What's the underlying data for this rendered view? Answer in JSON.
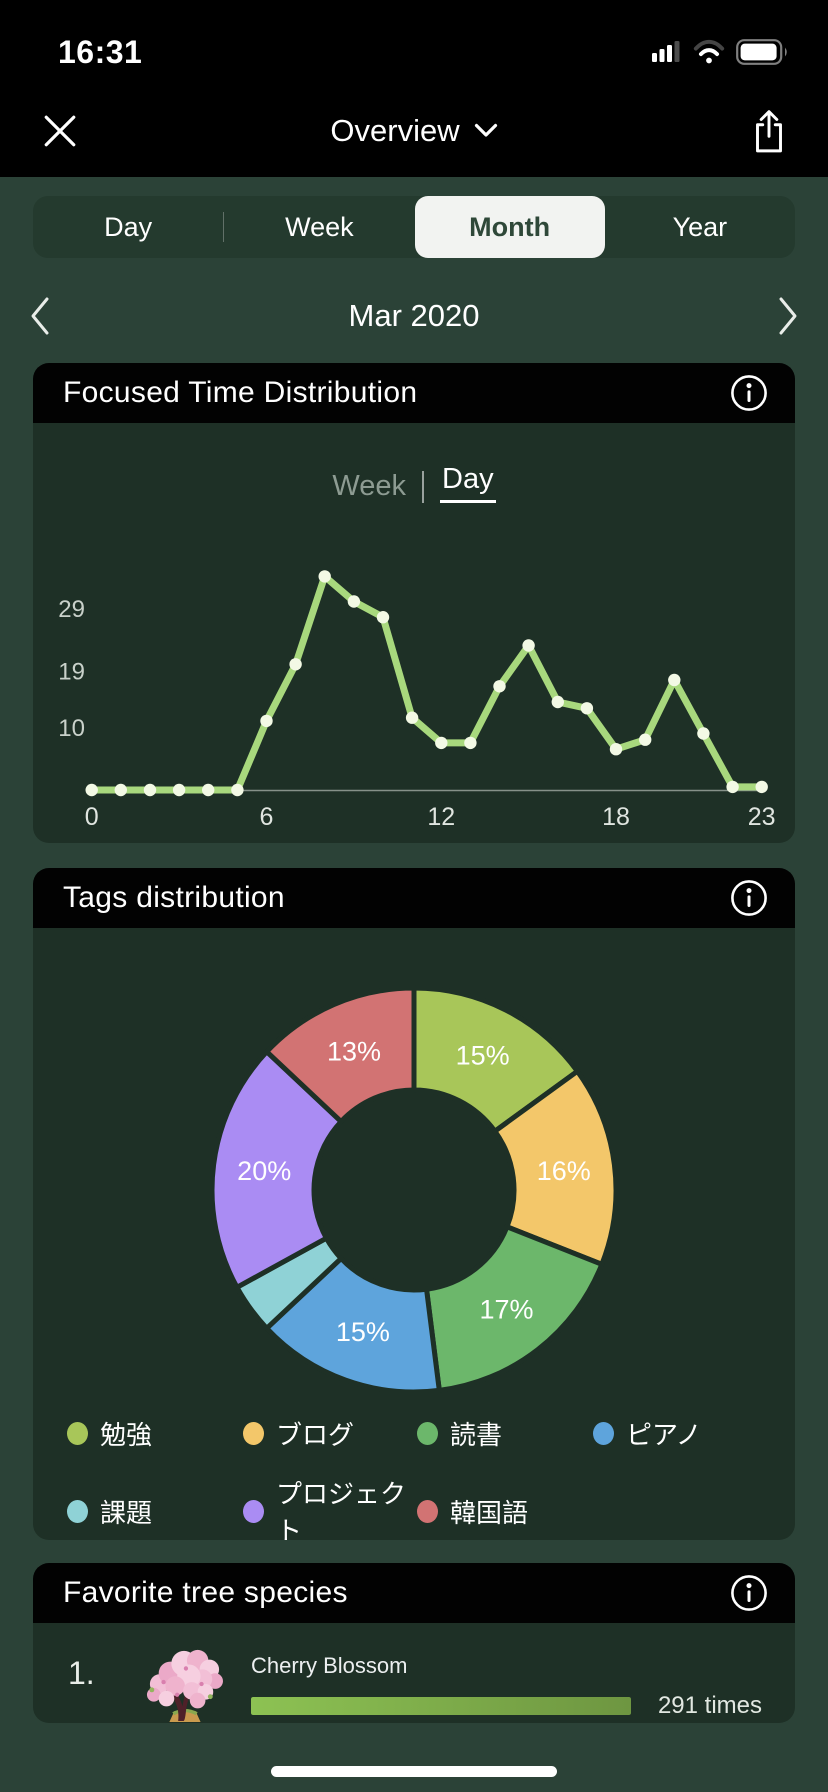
{
  "status_bar": {
    "time": "16:31",
    "icons": [
      "cellular-signal",
      "wifi",
      "battery"
    ]
  },
  "nav": {
    "title": "Overview"
  },
  "tabs": {
    "items": [
      "Day",
      "Week",
      "Month",
      "Year"
    ],
    "selected": "Month"
  },
  "period": {
    "label": "Mar 2020"
  },
  "cards": {
    "focused_time": {
      "title": "Focused Time Distribution",
      "toggle": {
        "options": [
          "Week",
          "Day"
        ],
        "selected": "Day"
      }
    },
    "tags": {
      "title": "Tags distribution"
    },
    "favorite_trees": {
      "title": "Favorite tree species",
      "rows": [
        {
          "rank": "1.",
          "name": "Cherry Blossom",
          "count_label": "291 times",
          "progress_pct": 100
        }
      ]
    }
  },
  "chart_data": [
    {
      "type": "line",
      "title": "Focused Time Distribution",
      "mode_selected": "Day",
      "x": [
        0,
        1,
        2,
        3,
        4,
        5,
        6,
        7,
        8,
        9,
        10,
        11,
        12,
        13,
        14,
        15,
        16,
        17,
        18,
        19,
        20,
        21,
        22,
        23
      ],
      "values": [
        0,
        0,
        0,
        0,
        0,
        0,
        11,
        20,
        34,
        30,
        27.5,
        11.5,
        7.5,
        7.5,
        16.5,
        23,
        14,
        13,
        6.5,
        8,
        17.5,
        9,
        0.5,
        0.5
      ],
      "yticks": [
        10,
        19,
        29
      ],
      "xticks": [
        0,
        6,
        12,
        18,
        23
      ],
      "ylim": [
        0,
        36
      ],
      "line_color": "#a8d87d",
      "dot_color": "#f3f9e5",
      "axis_line_color": "#99a29b",
      "tick_color": "#c9d1ca"
    },
    {
      "type": "donut",
      "title": "Tags distribution",
      "labels": [
        "勉強",
        "ブログ",
        "読書",
        "ピアノ",
        "課題",
        "プロジェクト",
        "韓国語"
      ],
      "values": [
        15,
        16,
        17,
        15,
        4,
        20,
        13
      ],
      "slice_labels": [
        "15%",
        "16%",
        "17%",
        "15%",
        "",
        "20%",
        "13%"
      ],
      "colors": [
        "#a8c659",
        "#f3c76a",
        "#6cb76b",
        "#5ea4dc",
        "#8fd2d6",
        "#aa8cf3",
        "#d27373"
      ],
      "start": "top",
      "direction": "clockwise",
      "label_color": "#ffffff"
    }
  ],
  "colors": {
    "page_bg": "#2b4237",
    "card_bg": "#1e3026",
    "header_bg": "#000000",
    "segmented_bg": "#243a2e",
    "selected_tab_bg": "#f2f3f1",
    "selected_tab_text": "#2f4839",
    "progress_gradient": [
      "#8dc253",
      "#6e9641"
    ]
  }
}
